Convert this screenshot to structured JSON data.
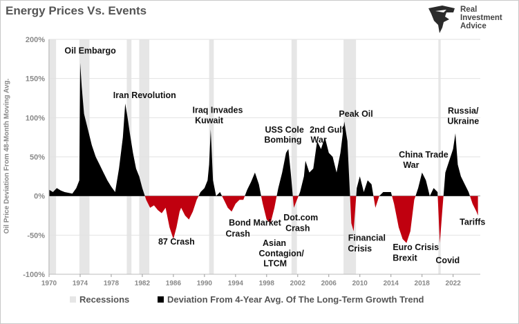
{
  "title": "Energy Prices Vs. Events",
  "logo": {
    "line1": "Real",
    "line2": "Investment",
    "line3": "Advice"
  },
  "chart_data": {
    "type": "area",
    "title": "Energy Prices Vs. Events",
    "ylabel": "Oil Price Deviation From 48-Month Moving Avg.",
    "xlim": [
      1970,
      2025.5
    ],
    "ylim": [
      -100,
      200
    ],
    "yticks": [
      -100,
      -50,
      0,
      50,
      100,
      150,
      200
    ],
    "ytick_labels": [
      "-100%",
      "-50%",
      "0%",
      "50%",
      "100%",
      "150%",
      "200%"
    ],
    "xticks": [
      1970,
      1974,
      1978,
      1982,
      1986,
      1990,
      1994,
      1998,
      2002,
      2006,
      2010,
      2014,
      2018,
      2022
    ],
    "xtick_labels": [
      "1970",
      "1974",
      "1978",
      "1982",
      "1986",
      "1990",
      "1994",
      "1998",
      "2002",
      "2006",
      "2010",
      "2014",
      "2018",
      "2022"
    ],
    "grid": "horizontal",
    "positive_color": "#000000",
    "negative_color": "#c0000f",
    "recession_color": "#e6e6e6",
    "recessions": [
      [
        1969.9,
        1970.9
      ],
      [
        1973.9,
        1975.2
      ],
      [
        1980.0,
        1980.6
      ],
      [
        1981.6,
        1982.9
      ],
      [
        1990.6,
        1991.2
      ],
      [
        2001.2,
        2001.9
      ],
      [
        2007.9,
        2009.5
      ],
      [
        2020.1,
        2020.4
      ]
    ],
    "series": [
      {
        "name": "Deviation From 4-Year Avg. Of The Long-Term Growth Trend",
        "x": [
          1970,
          1970.5,
          1971,
          1971.5,
          1972,
          1973,
          1973.5,
          1973.9,
          1974.0,
          1974.2,
          1974.5,
          1975,
          1975.5,
          1976,
          1976.5,
          1977,
          1977.5,
          1978,
          1978.5,
          1979,
          1979.5,
          1979.8,
          1980.1,
          1980.4,
          1980.8,
          1981.2,
          1981.6,
          1982,
          1982.5,
          1983,
          1983.5,
          1984,
          1984.5,
          1985,
          1985.5,
          1986,
          1986.4,
          1986.8,
          1987,
          1987.5,
          1988,
          1988.5,
          1989,
          1989.5,
          1990,
          1990.4,
          1990.6,
          1990.8,
          1991.1,
          1991.5,
          1992,
          1992.5,
          1993,
          1993.5,
          1994,
          1994.5,
          1995,
          1995.5,
          1996,
          1996.5,
          1997,
          1997.5,
          1998,
          1998.5,
          1999,
          1999.5,
          2000,
          2000.5,
          2000.8,
          2001.1,
          2001.5,
          2001.9,
          2002.3,
          2002.8,
          2003,
          2003.5,
          2004,
          2004.5,
          2005,
          2005.5,
          2006,
          2006.5,
          2007,
          2007.5,
          2008.0,
          2008.4,
          2008.9,
          2009.2,
          2009.6,
          2010,
          2010.5,
          2011,
          2011.5,
          2012,
          2012.5,
          2013,
          2013.5,
          2014,
          2014.4,
          2014.8,
          2015,
          2015.5,
          2016,
          2016.5,
          2017,
          2017.5,
          2018,
          2018.5,
          2019,
          2019.5,
          2020,
          2020.2,
          2020.3,
          2020.6,
          2021,
          2021.5,
          2022,
          2022.3,
          2022.6,
          2023,
          2023.5,
          2024,
          2024.5,
          2025,
          2025.2
        ],
        "y": [
          8,
          5,
          10,
          7,
          5,
          3,
          10,
          20,
          170,
          140,
          105,
          85,
          65,
          50,
          40,
          30,
          20,
          12,
          5,
          35,
          75,
          118,
          100,
          80,
          55,
          35,
          25,
          10,
          -5,
          -15,
          -12,
          -18,
          -22,
          -15,
          -40,
          -55,
          -40,
          -20,
          -15,
          -25,
          -30,
          -20,
          -5,
          5,
          10,
          20,
          40,
          85,
          20,
          0,
          5,
          -5,
          -15,
          -20,
          -10,
          -5,
          -5,
          8,
          18,
          30,
          15,
          -10,
          -30,
          -35,
          -15,
          10,
          30,
          55,
          60,
          30,
          -15,
          -5,
          5,
          25,
          45,
          30,
          35,
          70,
          60,
          75,
          55,
          50,
          30,
          55,
          95,
          70,
          -35,
          -45,
          10,
          25,
          5,
          20,
          15,
          -15,
          0,
          5,
          5,
          5,
          -10,
          -30,
          -40,
          -55,
          -60,
          -45,
          -5,
          10,
          30,
          20,
          0,
          10,
          5,
          -40,
          -60,
          -20,
          30,
          45,
          60,
          80,
          40,
          25,
          15,
          5,
          -10,
          -20,
          -25
        ]
      }
    ],
    "annotations": [
      {
        "text": "Oil Embargo",
        "x": 1975.3,
        "y": 182
      },
      {
        "text": "Iran Revolution",
        "x": 1982.3,
        "y": 125
      },
      {
        "text": "Iraq Invades",
        "x": 1991.7,
        "y": 106
      },
      {
        "text": "Kuwait",
        "x": 1990.6,
        "y": 93
      },
      {
        "text": "87 Crash",
        "x": 1986.4,
        "y": -62
      },
      {
        "text": "Bond Market",
        "x": 1996.5,
        "y": -38
      },
      {
        "text": "Crash",
        "x": 1994.3,
        "y": -52
      },
      {
        "text": "USS Cole",
        "x": 2000.3,
        "y": 81
      },
      {
        "text": "Bombing",
        "x": 2000.1,
        "y": 68
      },
      {
        "text": "2nd Gulf",
        "x": 2005.8,
        "y": 81
      },
      {
        "text": "War",
        "x": 2004.7,
        "y": 68
      },
      {
        "text": "Peak Oil",
        "x": 2009.5,
        "y": 101
      },
      {
        "text": "Asian",
        "x": 1999.0,
        "y": -64
      },
      {
        "text": "Contagion/",
        "x": 1999.9,
        "y": -77
      },
      {
        "text": "LTCM",
        "x": 1999.1,
        "y": -90
      },
      {
        "text": "Dot.com",
        "x": 2002.4,
        "y": -31
      },
      {
        "text": "Crash",
        "x": 2002.0,
        "y": -45
      },
      {
        "text": "Financial",
        "x": 2010.9,
        "y": -57
      },
      {
        "text": "Crisis",
        "x": 2010.0,
        "y": -71
      },
      {
        "text": "China Trade",
        "x": 2018.2,
        "y": 49
      },
      {
        "text": "War",
        "x": 2016.6,
        "y": 36
      },
      {
        "text": "Russia/",
        "x": 2023.3,
        "y": 105
      },
      {
        "text": "Ukraine",
        "x": 2023.3,
        "y": 92
      },
      {
        "text": "Euro Crisis",
        "x": 2017.2,
        "y": -69
      },
      {
        "text": "Brexit",
        "x": 2015.8,
        "y": -83
      },
      {
        "text": "Tariffs",
        "x": 2024.5,
        "y": -37
      },
      {
        "text": "Covid",
        "x": 2021.3,
        "y": -86
      }
    ]
  },
  "legend": [
    {
      "label": "Recessions",
      "color": "#e6e6e6"
    },
    {
      "label": "Deviation From 4-Year Avg. Of The Long-Term Growth Trend",
      "color": "#000000"
    }
  ]
}
